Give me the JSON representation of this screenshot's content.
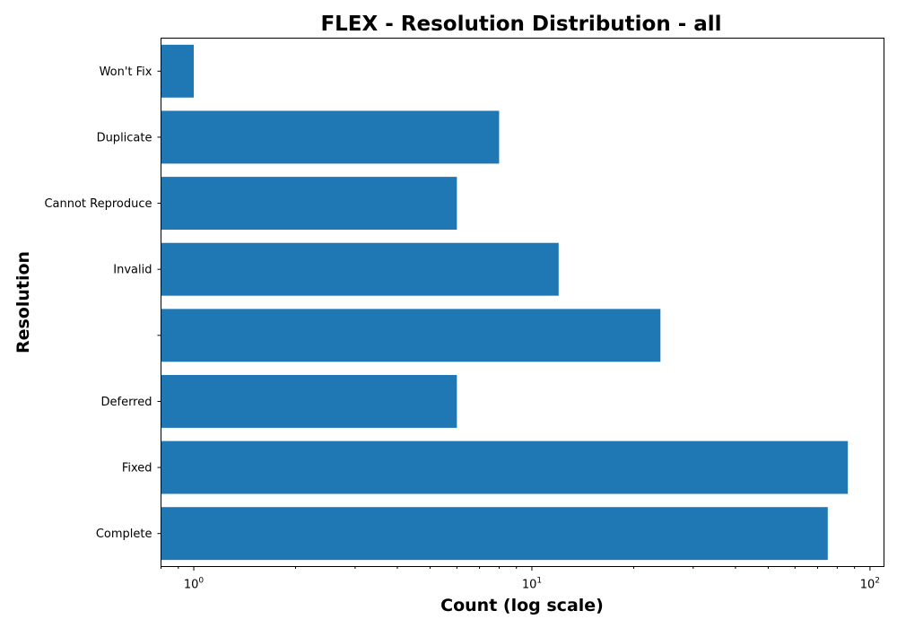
{
  "chart_data": {
    "type": "bar",
    "orientation": "horizontal",
    "title": "FLEX - Resolution Distribution - all",
    "xlabel": "Count (log scale)",
    "ylabel": "Resolution",
    "xscale": "log",
    "xlim": [
      0.8,
      110
    ],
    "x_major_ticks": [
      {
        "value": 1,
        "base": "10",
        "exp": "0"
      },
      {
        "value": 10,
        "base": "10",
        "exp": "1"
      },
      {
        "value": 100,
        "base": "10",
        "exp": "2"
      }
    ],
    "categories": [
      "Won't Fix",
      "Duplicate",
      "Cannot Reproduce",
      "Invalid",
      "",
      "Deferred",
      "Fixed",
      "Complete"
    ],
    "values": [
      1,
      8,
      6,
      12,
      24,
      6,
      86,
      75
    ],
    "color": "#1f77b4",
    "grid": false,
    "legend": "none"
  }
}
